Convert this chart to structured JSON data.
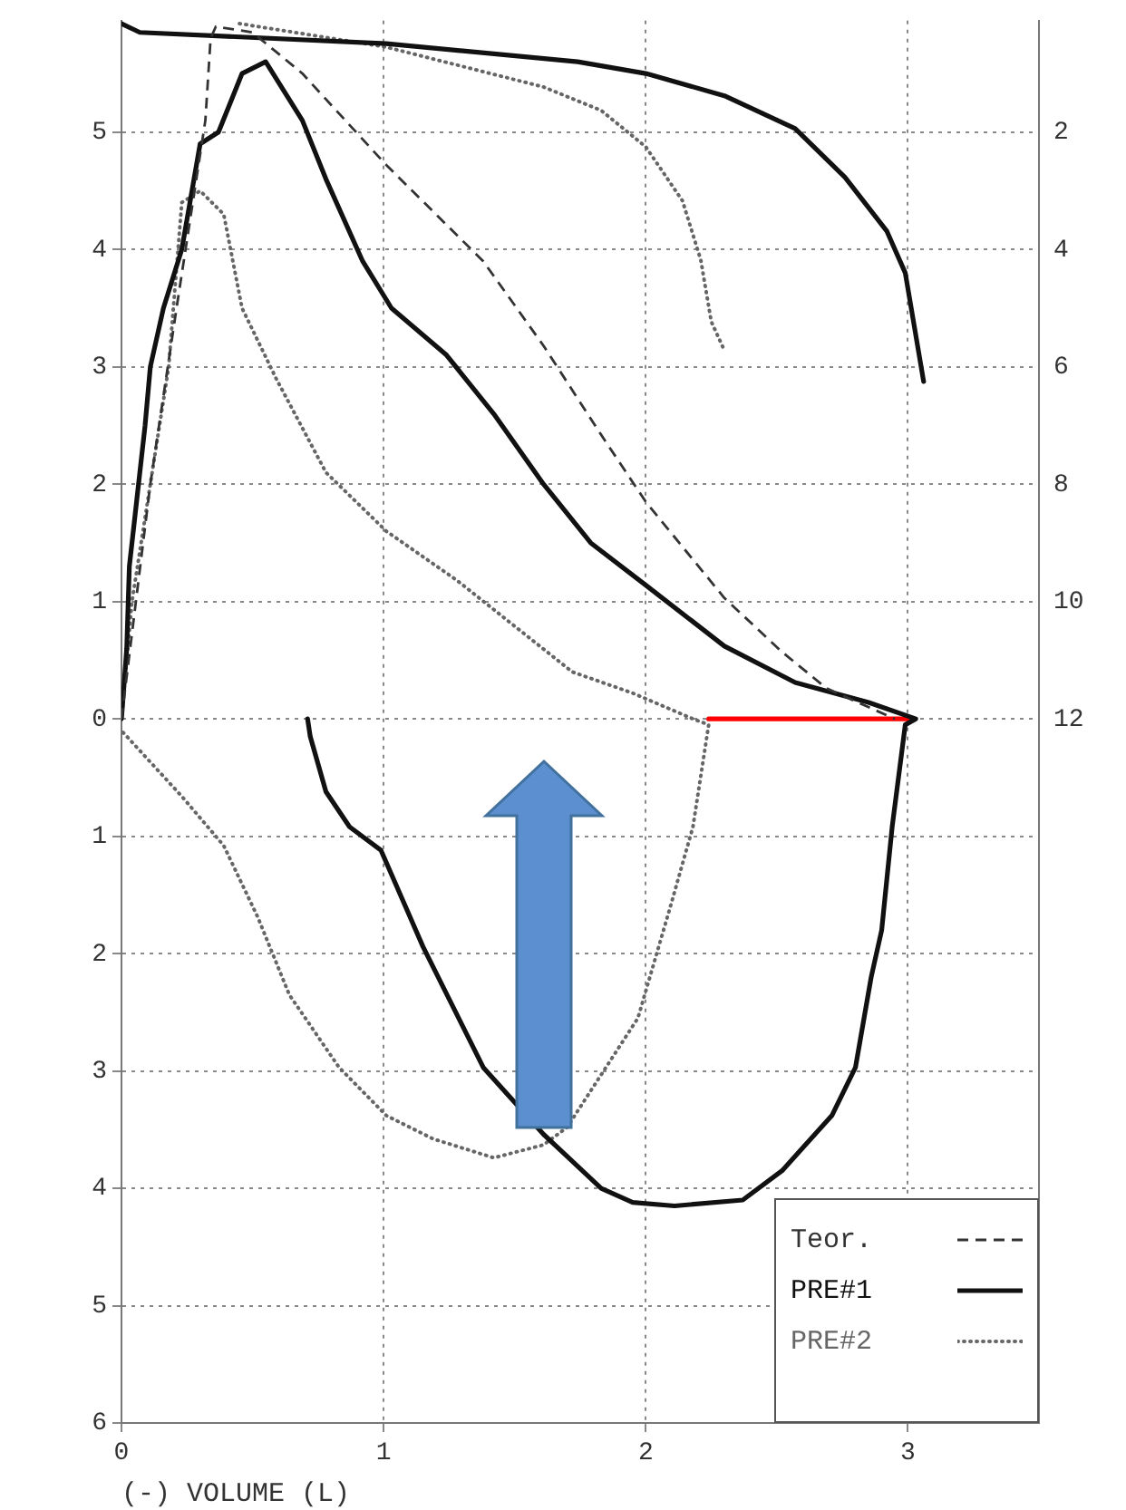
{
  "chart_data": {
    "type": "line",
    "xlabel": "(-) VOLUME (L)",
    "xlim": [
      0,
      3.5
    ],
    "xticks": [
      0,
      1,
      2,
      3
    ],
    "ylim": [
      -6,
      5.95
    ],
    "yticks": [
      {
        "value": -6,
        "label": "6"
      },
      {
        "value": -5,
        "label": "5"
      },
      {
        "value": -4,
        "label": "4"
      },
      {
        "value": -3,
        "label": "3"
      },
      {
        "value": -2,
        "label": "2"
      },
      {
        "value": -1,
        "label": "1"
      },
      0,
      1,
      2,
      3,
      4,
      5
    ],
    "y2lim": [
      24,
      0.1
    ],
    "y2ticks": [
      2,
      4,
      6,
      8,
      10,
      12
    ],
    "grid": true,
    "legend": "bottom right",
    "series": [
      {
        "name": "Teor.",
        "color": "#333333",
        "line_style": "dashed",
        "x": [
          0,
          0.11,
          0.21,
          0.32,
          0.34,
          0.36,
          0.5,
          0.69,
          1.01,
          1.38,
          1.61,
          1.83,
          2.0,
          2.3,
          2.52,
          2.69,
          2.95
        ],
        "values": [
          0,
          2.0,
          3.5,
          5.1,
          5.8,
          5.9,
          5.85,
          5.5,
          4.72,
          3.9,
          3.18,
          2.42,
          1.85,
          1.03,
          0.57,
          0.26,
          0
        ]
      },
      {
        "name": "PRE#1",
        "color": "#111111",
        "line_style": "solid",
        "x": [
          0,
          0.02,
          0.03,
          0.09,
          0.11,
          0.16,
          0.23,
          0.3,
          0.37,
          0.46,
          0.55,
          0.69,
          0.78,
          0.92,
          1.03,
          1.24,
          1.42,
          1.61,
          1.79,
          2.0,
          2.3,
          2.57,
          2.85,
          3.03,
          2.99,
          2.94,
          2.9,
          2.86,
          2.8,
          2.71,
          2.52,
          2.37,
          2.11,
          1.95,
          1.83,
          1.61,
          1.38,
          1.15,
          0.99,
          0.87,
          0.78,
          0.72,
          0.71
        ],
        "values": [
          0,
          0.6,
          1.3,
          2.5,
          3.0,
          3.5,
          4.0,
          4.9,
          5.0,
          5.5,
          5.6,
          5.1,
          4.6,
          3.9,
          3.5,
          3.1,
          2.6,
          2.0,
          1.5,
          1.14,
          0.62,
          0.31,
          0.14,
          0,
          -0.05,
          -0.92,
          -1.8,
          -2.2,
          -2.97,
          -3.38,
          -3.85,
          -4.1,
          -4.15,
          -4.12,
          -4.0,
          -3.54,
          -2.97,
          -1.94,
          -1.12,
          -0.92,
          -0.62,
          -0.15,
          0
        ]
      },
      {
        "color": "#111111",
        "line_style": "solid",
        "axis": "y2",
        "x": [
          0,
          0.07,
          1.01,
          1.74,
          2.0,
          2.3,
          2.57,
          2.76,
          2.92,
          2.99,
          3.06
        ],
        "values": [
          0.15,
          0.3,
          0.49,
          0.8,
          1.0,
          1.38,
          1.94,
          2.77,
          3.69,
          4.4,
          6.25
        ]
      },
      {
        "name": "PRE#2",
        "color": "#666666",
        "line_style": "dotted",
        "x": [
          0,
          0.04,
          0.11,
          0.18,
          0.23,
          0.3,
          0.39,
          0.46,
          0.59,
          0.78,
          1.01,
          1.28,
          1.72,
          1.95,
          2.18,
          2.24,
          2.18,
          2.09,
          1.97,
          1.7,
          1.61,
          1.42,
          1.19,
          1.01,
          0.83,
          0.64,
          0.52,
          0.39,
          0.23,
          0
        ],
        "values": [
          0,
          1.0,
          2.0,
          3.0,
          4.4,
          4.5,
          4.3,
          3.5,
          2.9,
          2.1,
          1.6,
          1.18,
          0.4,
          0.22,
          0,
          -0.05,
          -0.92,
          -1.63,
          -2.55,
          -3.48,
          -3.63,
          -3.74,
          -3.58,
          -3.38,
          -2.97,
          -2.35,
          -1.69,
          -1.08,
          -0.66,
          -0.1
        ]
      },
      {
        "color": "#666666",
        "line_style": "dotted",
        "axis": "y2",
        "x": [
          0.45,
          1.01,
          1.61,
          1.83,
          2.0,
          2.14,
          2.21,
          2.25,
          2.3
        ],
        "values": [
          0.15,
          0.55,
          1.23,
          1.63,
          2.25,
          3.17,
          4.18,
          5.23,
          5.72
        ]
      },
      {
        "type": "line",
        "color": "#ff0000",
        "line_style": "solid",
        "x": [
          2.24,
          3.0
        ],
        "values": [
          0,
          0
        ]
      }
    ]
  }
}
